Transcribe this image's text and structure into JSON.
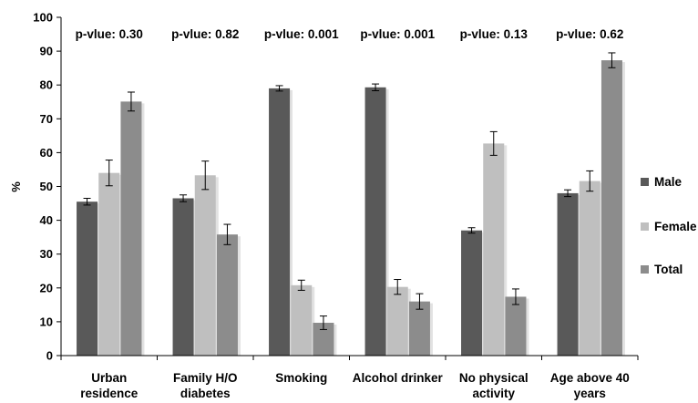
{
  "chart_data": {
    "type": "bar",
    "ylabel": "%",
    "ylim": [
      0,
      100
    ],
    "yticks": [
      0,
      10,
      20,
      30,
      40,
      50,
      60,
      70,
      80,
      90,
      100
    ],
    "categories": [
      [
        "Urban",
        "residence"
      ],
      [
        "Family H/O",
        "diabetes"
      ],
      [
        "Smoking"
      ],
      [
        "Alcohol drinker"
      ],
      [
        "No physical",
        "activity"
      ],
      [
        "Age above 40",
        "years"
      ]
    ],
    "annotations": [
      "p-vlue: 0.30",
      "p-vlue: 0.82",
      "p-vlue: 0.001",
      "p-vlue: 0.001",
      "p-vlue: 0.13",
      "p-vlue: 0.62"
    ],
    "series": [
      {
        "name": "Male",
        "color": "#595959",
        "values": [
          45.5,
          46.5,
          79,
          79.3,
          37,
          48
        ],
        "errors": [
          1,
          1,
          0.8,
          1,
          0.8,
          1
        ]
      },
      {
        "name": "Female",
        "color": "#bfbfbf",
        "values": [
          54,
          53.3,
          20.8,
          20.3,
          62.7,
          51.6
        ],
        "errors": [
          3.8,
          4.2,
          1.5,
          2.2,
          3.5,
          3
        ]
      },
      {
        "name": "Total",
        "color": "#8c8c8c",
        "values": [
          75.1,
          35.8,
          9.7,
          16,
          17.4,
          87.3
        ],
        "errors": [
          2.8,
          3,
          2,
          2.3,
          2.3,
          2.2
        ]
      }
    ],
    "legend_position": "right",
    "grid": false
  }
}
